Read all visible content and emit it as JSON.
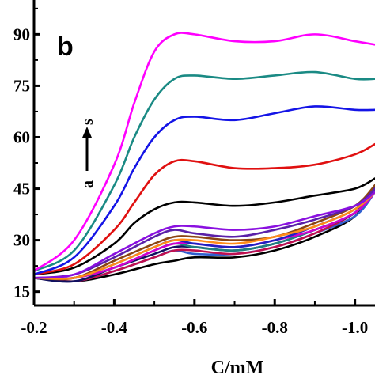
{
  "chart_data": {
    "type": "line",
    "panel_label": "b",
    "xlabel": "C/mM",
    "ylabel": "",
    "xlim": [
      -0.2,
      -1.05
    ],
    "ylim": [
      11,
      100
    ],
    "x_ticks": [
      -0.2,
      -0.4,
      -0.6,
      -0.8,
      -1.0
    ],
    "x_tick_labels": [
      "-0.2",
      "-0.4",
      "-0.6",
      "-0.8",
      "-1.0"
    ],
    "y_ticks": [
      15,
      30,
      45,
      60,
      75,
      90
    ],
    "y_tick_labels": [
      "15",
      "30",
      "45",
      "60",
      "75",
      "90"
    ],
    "annotation": {
      "from": "a",
      "to": "s"
    },
    "grid": false,
    "legend": "none",
    "series": [
      {
        "color": "#ff00ff",
        "x": [
          -0.2,
          -0.3,
          -0.4,
          -0.45,
          -0.5,
          -0.55,
          -0.6,
          -0.7,
          -0.8,
          -0.9,
          -1.0,
          -1.05
        ],
        "y": [
          21,
          30,
          52,
          70,
          85,
          90,
          90,
          88,
          88,
          90,
          88,
          87
        ]
      },
      {
        "color": "#1a8a84",
        "x": [
          -0.2,
          -0.3,
          -0.4,
          -0.45,
          -0.5,
          -0.55,
          -0.6,
          -0.7,
          -0.8,
          -0.9,
          -1.0,
          -1.05
        ],
        "y": [
          21,
          27,
          46,
          60,
          71,
          77,
          78,
          77,
          78,
          79,
          77,
          77
        ]
      },
      {
        "color": "#1414e6",
        "x": [
          -0.2,
          -0.3,
          -0.4,
          -0.45,
          -0.5,
          -0.55,
          -0.6,
          -0.7,
          -0.8,
          -0.9,
          -1.0,
          -1.05
        ],
        "y": [
          20,
          25,
          40,
          51,
          60,
          65,
          66,
          65,
          67,
          69,
          68,
          68
        ]
      },
      {
        "color": "#e01010",
        "x": [
          -0.2,
          -0.3,
          -0.4,
          -0.45,
          -0.5,
          -0.55,
          -0.6,
          -0.7,
          -0.8,
          -0.9,
          -1.0,
          -1.05
        ],
        "y": [
          20,
          23,
          33,
          41,
          49,
          53,
          53,
          51,
          51,
          52,
          55,
          58
        ]
      },
      {
        "color": "#000000",
        "x": [
          -0.2,
          -0.3,
          -0.4,
          -0.45,
          -0.5,
          -0.55,
          -0.6,
          -0.7,
          -0.8,
          -0.9,
          -1.0,
          -1.05
        ],
        "y": [
          20,
          22,
          29,
          35,
          39,
          41,
          41,
          40,
          41,
          43,
          45,
          48
        ]
      },
      {
        "color": "#8a10e0",
        "x": [
          -0.2,
          -0.3,
          -0.4,
          -0.5,
          -0.55,
          -0.6,
          -0.7,
          -0.8,
          -0.9,
          -1.0,
          -1.05
        ],
        "y": [
          19,
          20,
          26,
          32,
          34,
          34,
          33,
          34,
          37,
          40,
          44
        ]
      },
      {
        "color": "#5a20a8",
        "x": [
          -0.2,
          -0.3,
          -0.4,
          -0.5,
          -0.55,
          -0.6,
          -0.7,
          -0.8,
          -0.9,
          -1.0,
          -1.05
        ],
        "y": [
          19,
          20,
          25,
          31,
          33,
          32,
          31,
          33,
          36,
          40,
          45
        ]
      },
      {
        "color": "#ff8c1a",
        "x": [
          -0.2,
          -0.3,
          -0.4,
          -0.5,
          -0.55,
          -0.6,
          -0.7,
          -0.8,
          -0.9,
          -1.0,
          -1.05
        ],
        "y": [
          19,
          19,
          23,
          28,
          30,
          30,
          29,
          31,
          34,
          39,
          44
        ]
      },
      {
        "color": "#8b4513",
        "x": [
          -0.2,
          -0.3,
          -0.4,
          -0.5,
          -0.55,
          -0.6,
          -0.7,
          -0.8,
          -0.9,
          -1.0,
          -1.05
        ],
        "y": [
          19,
          19,
          24,
          29,
          31,
          31,
          30,
          31,
          35,
          40,
          46
        ]
      },
      {
        "color": "#2020c0",
        "x": [
          -0.2,
          -0.3,
          -0.4,
          -0.5,
          -0.55,
          -0.6,
          -0.7,
          -0.8,
          -0.9,
          -1.0,
          -1.05
        ],
        "y": [
          19,
          19,
          23,
          28,
          30,
          29,
          28,
          30,
          34,
          39,
          45
        ]
      },
      {
        "color": "#d000d0",
        "x": [
          -0.2,
          -0.3,
          -0.4,
          -0.5,
          -0.55,
          -0.6,
          -0.7,
          -0.8,
          -0.9,
          -1.0,
          -1.05
        ],
        "y": [
          19,
          19,
          22,
          27,
          29,
          29,
          28,
          30,
          33,
          38,
          44
        ]
      },
      {
        "color": "#208080",
        "x": [
          -0.2,
          -0.3,
          -0.4,
          -0.5,
          -0.55,
          -0.6,
          -0.7,
          -0.8,
          -0.9,
          -1.0,
          -1.05
        ],
        "y": [
          19,
          19,
          22,
          27,
          29,
          28,
          27,
          29,
          33,
          38,
          45
        ]
      },
      {
        "color": "#101060",
        "x": [
          -0.2,
          -0.3,
          -0.4,
          -0.5,
          -0.55,
          -0.6,
          -0.7,
          -0.8,
          -0.9,
          -1.0,
          -1.05
        ],
        "y": [
          19,
          18,
          22,
          26,
          28,
          28,
          27,
          29,
          33,
          38,
          46
        ]
      },
      {
        "color": "#c01050",
        "x": [
          -0.2,
          -0.3,
          -0.4,
          -0.5,
          -0.55,
          -0.6,
          -0.7,
          -0.8,
          -0.9,
          -1.0,
          -1.05
        ],
        "y": [
          19,
          18,
          21,
          25,
          27,
          27,
          26,
          28,
          32,
          38,
          45
        ]
      },
      {
        "color": "#3060d0",
        "x": [
          -0.2,
          -0.3,
          -0.4,
          -0.5,
          -0.55,
          -0.6,
          -0.7,
          -0.8,
          -0.9,
          -1.0,
          -1.05
        ],
        "y": [
          19,
          18,
          21,
          25,
          27,
          26,
          26,
          28,
          32,
          37,
          44
        ]
      },
      {
        "color": "#000000",
        "x": [
          -0.2,
          -0.3,
          -0.4,
          -0.5,
          -0.55,
          -0.6,
          -0.7,
          -0.8,
          -0.9,
          -1.0,
          -1.05
        ],
        "y": [
          19,
          18,
          20,
          23,
          24,
          25,
          25,
          27,
          31,
          37,
          46
        ]
      }
    ]
  }
}
